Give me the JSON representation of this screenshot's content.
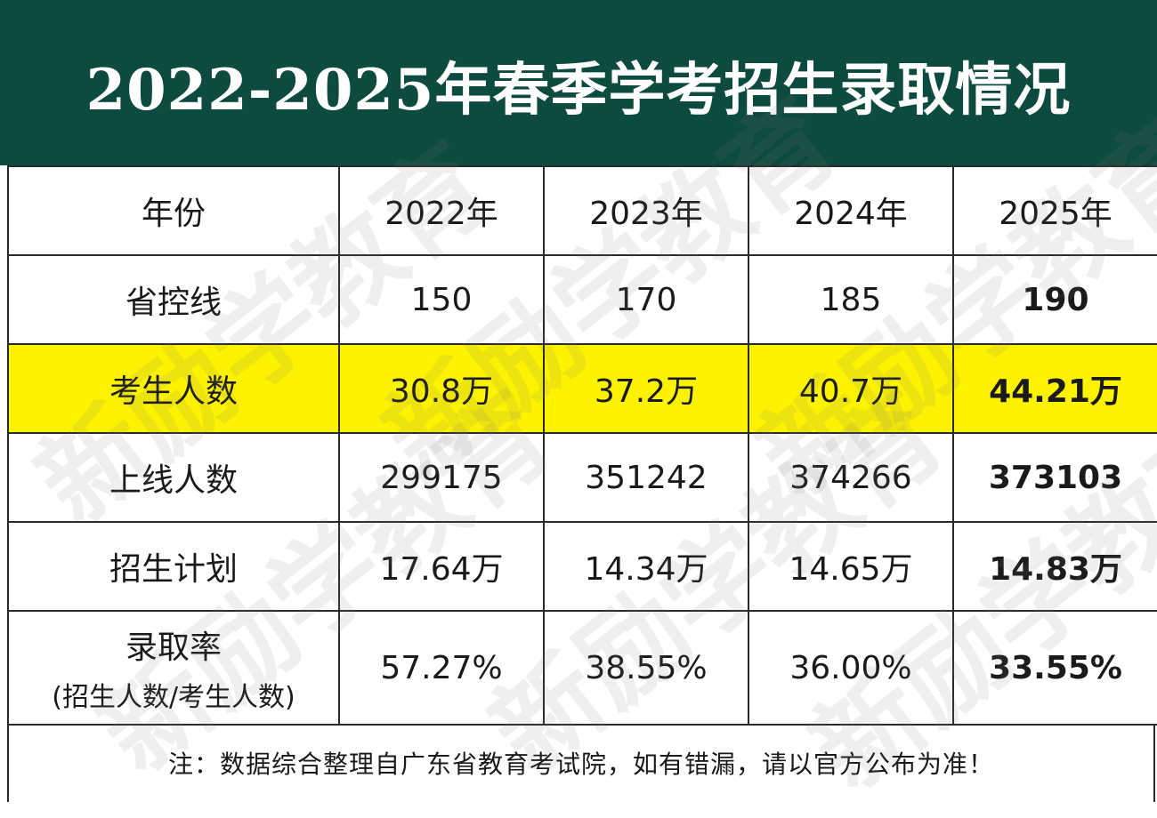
{
  "title": "2022-2025年春季学考招生录取情况",
  "watermark_text": "新励学教育",
  "header_row": {
    "label": "年份",
    "cols": [
      "2022年",
      "2023年",
      "2024年",
      "2025年"
    ]
  },
  "rows": [
    {
      "label": "省控线",
      "values": [
        "150",
        "170",
        "185",
        "190"
      ],
      "highlight": false
    },
    {
      "label": "考生人数",
      "values": [
        "30.8万",
        "37.2万",
        "40.7万",
        "44.21万"
      ],
      "highlight": true
    },
    {
      "label": "上线人数",
      "values": [
        "299175",
        "351242",
        "374266",
        "373103"
      ],
      "highlight": false
    },
    {
      "label": "招生计划",
      "values": [
        "17.64万",
        "14.34万",
        "14.65万",
        "14.83万"
      ],
      "highlight": false
    }
  ],
  "rate_row": {
    "label": "录取率",
    "sublabel": "(招生人数/考生人数)",
    "values": [
      "57.27%",
      "38.55%",
      "36.00%",
      "33.55%"
    ]
  },
  "note": "注：数据综合整理自广东省教育考试院，如有错漏，请以官方公布为准！",
  "colors": {
    "title_bg": "#0d4a3f",
    "highlight": "#fdf200",
    "border": "#2a2a2a"
  }
}
